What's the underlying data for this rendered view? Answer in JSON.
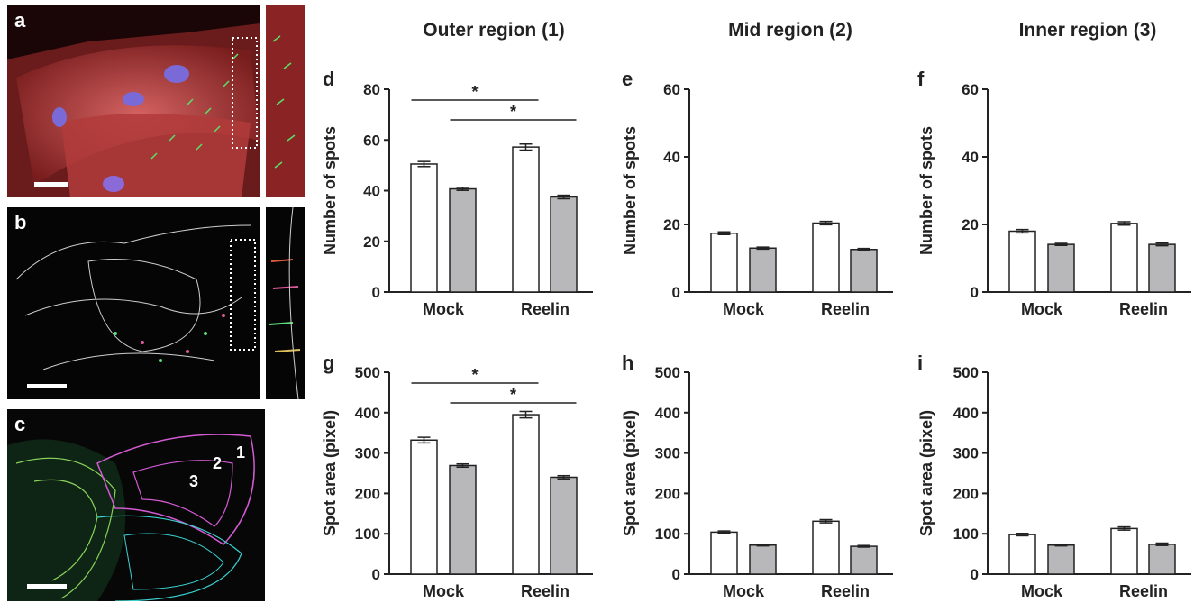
{
  "column_titles": [
    "Outer region (1)",
    "Mid region (2)",
    "Inner region (3)"
  ],
  "image_panels": [
    {
      "letter": "a",
      "description_colors": [
        "#c83c3c",
        "#3cd25a",
        "#7a5ad2"
      ]
    },
    {
      "letter": "b"
    },
    {
      "letter": "c",
      "region_labels": [
        "1",
        "2",
        "3"
      ]
    }
  ],
  "colors": {
    "mock_bar": "#ffffff",
    "reelin_bar": "#b8b8ba",
    "axis": "#222222"
  },
  "chart_data": [
    {
      "panel": "d",
      "type": "bar",
      "ylabel": "Number of spots",
      "categories": [
        "Mock",
        "Reelin"
      ],
      "ylim": [
        0,
        80
      ],
      "yticks": [
        0,
        20,
        40,
        60,
        80
      ],
      "series": [
        {
          "values": [
            50.5,
            57.2
          ],
          "errors": [
            1.0,
            1.2
          ],
          "color": "#ffffff"
        },
        {
          "values": [
            40.7,
            37.5
          ],
          "errors": [
            0.6,
            0.7
          ],
          "color": "#b8b8ba"
        }
      ],
      "significance": [
        {
          "from": "Mock-0",
          "to": "Reelin-0",
          "label": "*"
        },
        {
          "from": "Mock-1",
          "to": "Reelin-1",
          "label": "*"
        }
      ]
    },
    {
      "panel": "e",
      "type": "bar",
      "ylabel": "Number of spots",
      "categories": [
        "Mock",
        "Reelin"
      ],
      "ylim": [
        0,
        60
      ],
      "yticks": [
        0,
        20,
        40,
        60
      ],
      "series": [
        {
          "values": [
            17.4,
            20.4
          ],
          "errors": [
            0.4,
            0.5
          ],
          "color": "#ffffff"
        },
        {
          "values": [
            13.0,
            12.6
          ],
          "errors": [
            0.3,
            0.3
          ],
          "color": "#b8b8ba"
        }
      ],
      "significance": []
    },
    {
      "panel": "f",
      "type": "bar",
      "ylabel": "Number of spots",
      "categories": [
        "Mock",
        "Reelin"
      ],
      "ylim": [
        0,
        60
      ],
      "yticks": [
        0,
        20,
        40,
        60
      ],
      "series": [
        {
          "values": [
            18.0,
            20.3
          ],
          "errors": [
            0.5,
            0.5
          ],
          "color": "#ffffff"
        },
        {
          "values": [
            14.1,
            14.1
          ],
          "errors": [
            0.3,
            0.4
          ],
          "color": "#b8b8ba"
        }
      ],
      "significance": []
    },
    {
      "panel": "g",
      "type": "bar",
      "ylabel": "Spot area (pixel)",
      "categories": [
        "Mock",
        "Reelin"
      ],
      "ylim": [
        0,
        500
      ],
      "yticks": [
        0,
        100,
        200,
        300,
        400,
        500
      ],
      "series": [
        {
          "values": [
            332,
            395
          ],
          "errors": [
            7,
            8
          ],
          "color": "#ffffff"
        },
        {
          "values": [
            269,
            240
          ],
          "errors": [
            4,
            4
          ],
          "color": "#b8b8ba"
        }
      ],
      "significance": [
        {
          "from": "Mock-0",
          "to": "Reelin-0",
          "label": "*"
        },
        {
          "from": "Mock-1",
          "to": "Reelin-1",
          "label": "*"
        }
      ]
    },
    {
      "panel": "h",
      "type": "bar",
      "ylabel": "Spot area (pixel)",
      "categories": [
        "Mock",
        "Reelin"
      ],
      "ylim": [
        0,
        500
      ],
      "yticks": [
        0,
        100,
        200,
        300,
        400,
        500
      ],
      "series": [
        {
          "values": [
            104,
            131
          ],
          "errors": [
            3,
            4
          ],
          "color": "#ffffff"
        },
        {
          "values": [
            72,
            69
          ],
          "errors": [
            2,
            2
          ],
          "color": "#b8b8ba"
        }
      ],
      "significance": []
    },
    {
      "panel": "i",
      "type": "bar",
      "ylabel": "Spot area (pixel)",
      "categories": [
        "Mock",
        "Reelin"
      ],
      "ylim": [
        0,
        500
      ],
      "yticks": [
        0,
        100,
        200,
        300,
        400,
        500
      ],
      "series": [
        {
          "values": [
            98,
            113
          ],
          "errors": [
            3,
            4
          ],
          "color": "#ffffff"
        },
        {
          "values": [
            72,
            74
          ],
          "errors": [
            2,
            3
          ],
          "color": "#b8b8ba"
        }
      ],
      "significance": []
    }
  ]
}
